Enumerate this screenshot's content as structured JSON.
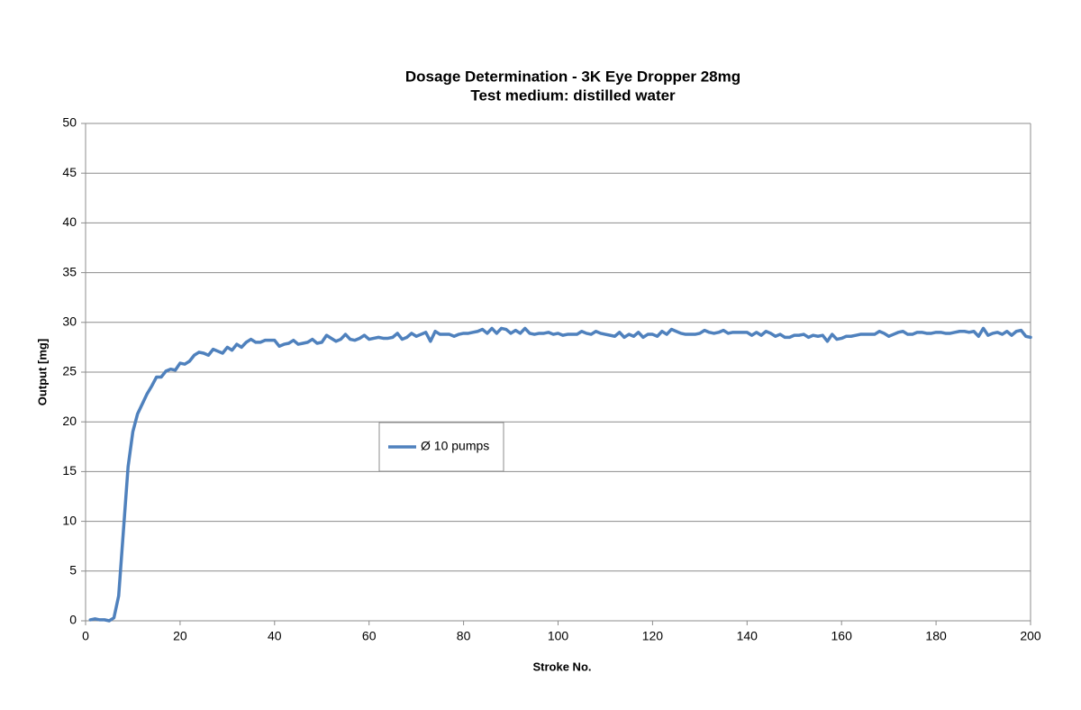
{
  "chart_data": {
    "type": "line",
    "title": "Dosage Determination - 3K Eye Dropper 28mg",
    "subtitle": "Test medium: distilled water",
    "x_label": "Stroke No.",
    "y_label": "Output [mg]",
    "x": [
      1,
      2,
      3,
      4,
      5,
      6,
      7,
      8,
      9,
      10,
      11,
      12,
      13,
      14,
      15,
      16,
      17,
      18,
      19,
      20,
      21,
      22,
      23,
      24,
      25,
      26,
      27,
      28,
      29,
      30,
      31,
      32,
      33,
      34,
      35,
      36,
      37,
      38,
      39,
      40,
      41,
      42,
      43,
      44,
      45,
      46,
      47,
      48,
      49,
      50,
      51,
      52,
      53,
      54,
      55,
      56,
      57,
      58,
      59,
      60,
      61,
      62,
      63,
      64,
      65,
      66,
      67,
      68,
      69,
      70,
      71,
      72,
      73,
      74,
      75,
      76,
      77,
      78,
      79,
      80,
      81,
      82,
      83,
      84,
      85,
      86,
      87,
      88,
      89,
      90,
      91,
      92,
      93,
      94,
      95,
      96,
      97,
      98,
      99,
      100,
      101,
      102,
      103,
      104,
      105,
      106,
      107,
      108,
      109,
      110,
      111,
      112,
      113,
      114,
      115,
      116,
      117,
      118,
      119,
      120,
      121,
      122,
      123,
      124,
      125,
      126,
      127,
      128,
      129,
      130,
      131,
      132,
      133,
      134,
      135,
      136,
      137,
      138,
      139,
      140,
      141,
      142,
      143,
      144,
      145,
      146,
      147,
      148,
      149,
      150,
      151,
      152,
      153,
      154,
      155,
      156,
      157,
      158,
      159,
      160,
      161,
      162,
      163,
      164,
      165,
      166,
      167,
      168,
      169,
      170,
      171,
      172,
      173,
      174,
      175,
      176,
      177,
      178,
      179,
      180,
      181,
      182,
      183,
      184,
      185,
      186,
      187,
      188,
      189,
      190,
      191,
      192,
      193,
      194,
      195,
      196,
      197,
      198,
      199,
      200
    ],
    "series": [
      {
        "name": "Ø 10 pumps",
        "color": "#4f81bd",
        "values": [
          0.1,
          0.2,
          0.1,
          0.1,
          0,
          0.3,
          2.5,
          9,
          15.5,
          19,
          20.8,
          21.8,
          22.8,
          23.6,
          24.5,
          24.5,
          25.1,
          25.3,
          25.2,
          25.9,
          25.8,
          26.1,
          26.7,
          27,
          26.9,
          26.7,
          27.3,
          27.1,
          26.9,
          27.5,
          27.2,
          27.8,
          27.5,
          28,
          28.3,
          28,
          28,
          28.2,
          28.2,
          28.2,
          27.6,
          27.8,
          27.9,
          28.2,
          27.8,
          27.9,
          28,
          28.3,
          27.9,
          28,
          28.7,
          28.4,
          28.1,
          28.3,
          28.8,
          28.3,
          28.2,
          28.4,
          28.7,
          28.3,
          28.4,
          28.5,
          28.4,
          28.4,
          28.5,
          28.9,
          28.3,
          28.5,
          28.9,
          28.6,
          28.8,
          29,
          28.1,
          29.1,
          28.8,
          28.8,
          28.8,
          28.6,
          28.8,
          28.9,
          28.9,
          29,
          29.1,
          29.3,
          28.9,
          29.4,
          28.9,
          29.4,
          29.3,
          28.9,
          29.2,
          28.9,
          29.4,
          28.9,
          28.8,
          28.9,
          28.9,
          29,
          28.8,
          28.9,
          28.7,
          28.8,
          28.8,
          28.8,
          29.1,
          28.9,
          28.8,
          29.1,
          28.9,
          28.8,
          28.7,
          28.6,
          29,
          28.5,
          28.8,
          28.6,
          29,
          28.5,
          28.8,
          28.8,
          28.6,
          29.1,
          28.8,
          29.3,
          29.1,
          28.9,
          28.8,
          28.8,
          28.8,
          28.9,
          29.2,
          29,
          28.9,
          29,
          29.2,
          28.9,
          29,
          29,
          29,
          29,
          28.7,
          29,
          28.7,
          29.1,
          28.9,
          28.6,
          28.8,
          28.5,
          28.5,
          28.7,
          28.7,
          28.8,
          28.5,
          28.7,
          28.6,
          28.7,
          28.1,
          28.8,
          28.3,
          28.4,
          28.6,
          28.6,
          28.7,
          28.8,
          28.8,
          28.8,
          28.8,
          29.1,
          28.9,
          28.6,
          28.8,
          29,
          29.1,
          28.8,
          28.8,
          29,
          29,
          28.9,
          28.9,
          29,
          29,
          28.9,
          28.9,
          29,
          29.1,
          29.1,
          29,
          29.1,
          28.6,
          29.4,
          28.7,
          28.9,
          29,
          28.8,
          29.1,
          28.7,
          29.1,
          29.2,
          28.6,
          28.5
        ]
      }
    ],
    "xlim": [
      0,
      200
    ],
    "xticks": [
      0,
      20,
      40,
      60,
      80,
      100,
      120,
      140,
      160,
      180,
      200
    ],
    "ylim": [
      0,
      50
    ],
    "yticks": [
      0,
      5,
      10,
      15,
      20,
      25,
      30,
      35,
      40,
      45,
      50
    ],
    "grid": true
  }
}
